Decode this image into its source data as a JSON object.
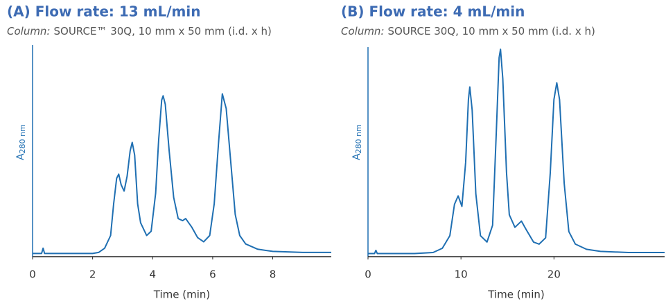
{
  "chart_data": [
    {
      "type": "line",
      "title": "(A) Flow rate: 13 mL/min",
      "subtitle_label": "Column:",
      "subtitle": "SOURCE™ 30Q, 10 mm x 50 mm (i.d. x h)",
      "xlabel": "Time (min)",
      "ylabel": {
        "main": "A",
        "sub": "280 nm"
      },
      "color": "#1f6fb2",
      "grid": false,
      "xlim": [
        0,
        9.95
      ],
      "xticks": [
        0,
        2,
        4,
        6,
        8
      ],
      "ylim": [
        0,
        100
      ],
      "x": [
        0,
        0.3,
        0.35,
        0.4,
        1,
        2,
        2.2,
        2.4,
        2.6,
        2.7,
        2.8,
        2.87,
        2.95,
        3.05,
        3.15,
        3.25,
        3.32,
        3.4,
        3.5,
        3.6,
        3.8,
        3.95,
        4.1,
        4.2,
        4.3,
        4.35,
        4.42,
        4.55,
        4.7,
        4.85,
        5.0,
        5.1,
        5.3,
        5.5,
        5.7,
        5.9,
        6.05,
        6.2,
        6.32,
        6.45,
        6.6,
        6.75,
        6.9,
        7.1,
        7.5,
        8,
        9,
        9.95
      ],
      "values": [
        1.5,
        1.5,
        4,
        1.5,
        1.5,
        1.5,
        2,
        4,
        10,
        25,
        37,
        39,
        34,
        31,
        38,
        50,
        54,
        48,
        25,
        16,
        10,
        12,
        30,
        55,
        74,
        76,
        72,
        50,
        28,
        18,
        17,
        18,
        14,
        9,
        7,
        10,
        25,
        55,
        77,
        70,
        45,
        20,
        10,
        6,
        3.5,
        2.5,
        2,
        2
      ]
    },
    {
      "type": "line",
      "title": "(B) Flow rate: 4 mL/min",
      "subtitle_label": "Column:",
      "subtitle": "SOURCE 30Q, 10 mm x 50 mm (i.d. x h)",
      "xlabel": "Time (min)",
      "ylabel": {
        "main": "A",
        "sub": "280 nm"
      },
      "color": "#1f6fb2",
      "grid": false,
      "xlim": [
        0,
        31.9
      ],
      "xticks": [
        0,
        10,
        20
      ],
      "ylim": [
        0,
        100
      ],
      "x": [
        0,
        0.7,
        0.85,
        1,
        5,
        7,
        8,
        8.8,
        9.3,
        9.7,
        10.1,
        10.5,
        10.8,
        10.95,
        11.2,
        11.6,
        12.1,
        12.8,
        13.4,
        13.8,
        14.1,
        14.25,
        14.5,
        14.9,
        15.2,
        15.8,
        16.5,
        17.0,
        17.8,
        18.4,
        19.1,
        19.6,
        20.0,
        20.3,
        20.6,
        21.1,
        21.6,
        22.3,
        23.5,
        25,
        28,
        31.9
      ],
      "values": [
        1.5,
        1.5,
        3,
        1.5,
        1.5,
        2,
        4,
        10,
        25,
        29,
        24,
        45,
        75,
        81,
        70,
        30,
        10,
        7,
        15,
        60,
        95,
        99,
        85,
        40,
        20,
        14,
        17,
        13,
        7,
        6,
        9,
        40,
        75,
        83,
        75,
        35,
        12,
        6,
        3.5,
        2.5,
        2,
        2
      ]
    }
  ]
}
